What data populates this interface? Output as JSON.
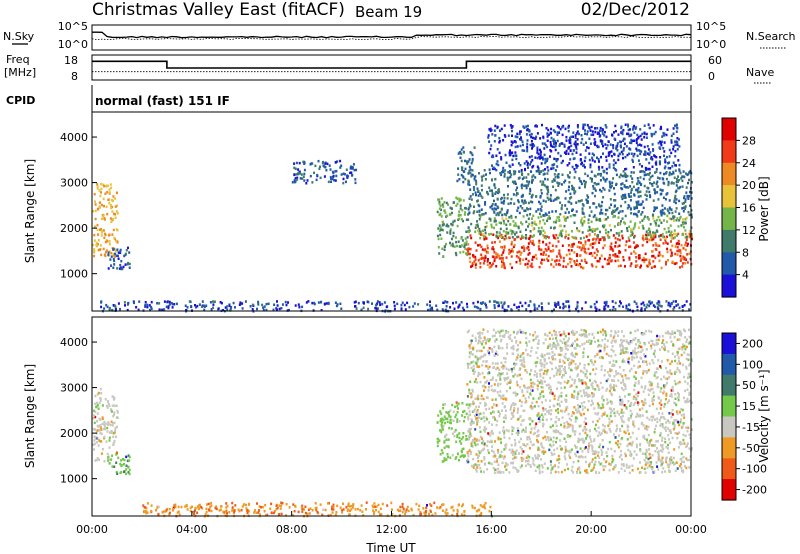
{
  "header": {
    "station": "Christmas Valley East (fitACF)",
    "beam": "Beam 19",
    "date": "02/Dec/2012"
  },
  "left_labels": {
    "nsky": "N.Sky",
    "freq_top": "Freq",
    "freq_unit": "[MHz]",
    "cpid": "CPID"
  },
  "right_labels": {
    "nsearch": "N.Search",
    "nave": "Nave"
  },
  "cpid_value": "normal (fast) 151 IF",
  "chart_data": [
    {
      "type": "line",
      "name": "noise",
      "series": [
        {
          "name": "N.Sky"
        },
        {
          "name": "N.Search"
        }
      ],
      "ytick_labels_left": [
        "10^5",
        "10^0"
      ],
      "ytick_labels_right": [
        "10^5",
        "10^0"
      ]
    },
    {
      "type": "line",
      "name": "frequency-nave",
      "series": [
        {
          "name": "Freq",
          "points": [
            [
              0,
              15.5
            ],
            [
              3.0,
              15.5
            ],
            [
              3.0,
              12.8
            ],
            [
              15.0,
              12.8
            ],
            [
              15.0,
              15.5
            ],
            [
              24,
              15.5
            ]
          ]
        },
        {
          "name": "Nave",
          "points": [
            [
              0,
              20
            ],
            [
              24,
              20
            ]
          ]
        }
      ],
      "ytick_labels_left": [
        "18",
        "8"
      ],
      "ytick_labels_right": [
        "60",
        "0"
      ],
      "ylim_left": [
        8,
        18
      ],
      "ylim_right": [
        0,
        60
      ]
    },
    {
      "type": "heatmap",
      "name": "power",
      "xlabel": "",
      "ylabel": "Slant Range [km]",
      "xlim": [
        0,
        24
      ],
      "ylim": [
        180,
        4550
      ],
      "yticks": [
        1000,
        2000,
        3000,
        4000
      ],
      "colorbar_label": "Power [dB]",
      "colorbar_ticks": [
        "4",
        "8",
        "12",
        "16",
        "20",
        "24",
        "28"
      ],
      "colorbar_range": [
        0,
        32
      ],
      "colors": [
        "#1a10d8",
        "#205aa8",
        "#3f7a6a",
        "#74b54a",
        "#e8c33a",
        "#ee8a24",
        "#f03a18",
        "#e00000"
      ],
      "regions": [
        {
          "t": [
            0.0,
            1.0
          ],
          "r": [
            1400,
            3000
          ],
          "value": 20
        },
        {
          "t": [
            0.6,
            1.5
          ],
          "r": [
            1100,
            1600
          ],
          "value": 6
        },
        {
          "t": [
            8.0,
            10.6
          ],
          "r": [
            3000,
            3500
          ],
          "value": 6
        },
        {
          "t": [
            13.8,
            15.0
          ],
          "r": [
            1400,
            2700
          ],
          "value": 12
        },
        {
          "t": [
            14.6,
            15.3
          ],
          "r": [
            3000,
            3800
          ],
          "value": 8
        },
        {
          "t": [
            15.0,
            24.0
          ],
          "r": [
            1150,
            1900
          ],
          "value": 26
        },
        {
          "t": [
            15.0,
            24.0
          ],
          "r": [
            1800,
            2300
          ],
          "value": 13
        },
        {
          "t": [
            15.0,
            24.0
          ],
          "r": [
            2300,
            3300
          ],
          "value": 8
        },
        {
          "t": [
            15.8,
            23.5
          ],
          "r": [
            3300,
            4300
          ],
          "value": 4
        },
        {
          "t": [
            0.3,
            24.0
          ],
          "r": [
            200,
            420
          ],
          "value": 5
        }
      ]
    },
    {
      "type": "heatmap",
      "name": "velocity",
      "xlabel": "Time UT",
      "ylabel": "Slant Range [km]",
      "xlim": [
        0,
        24
      ],
      "ylim": [
        180,
        4550
      ],
      "yticks": [
        1000,
        2000,
        3000,
        4000
      ],
      "xtick_labels": [
        "00:00",
        "04:00",
        "08:00",
        "12:00",
        "16:00",
        "20:00",
        "00:00"
      ],
      "colorbar_label": "Velocity [m s⁻¹]",
      "colorbar_ticks": [
        "200",
        "100",
        "50",
        "15",
        "-15",
        "-50",
        "-100",
        "-200"
      ],
      "colors": [
        "#1a10d8",
        "#205aa8",
        "#3f7a6a",
        "#74c84a",
        "#c8c8c0",
        "#ee9a24",
        "#f05a18",
        "#e00000"
      ],
      "regions": [
        {
          "t": [
            0.0,
            1.0
          ],
          "r": [
            1400,
            3000
          ],
          "velocity": 0
        },
        {
          "t": [
            0.6,
            1.5
          ],
          "r": [
            1100,
            1600
          ],
          "velocity": 40
        },
        {
          "t": [
            13.8,
            15.0
          ],
          "r": [
            1400,
            2700
          ],
          "velocity": 30
        },
        {
          "t": [
            15.0,
            24.0
          ],
          "r": [
            1150,
            2300
          ],
          "velocity": 0
        },
        {
          "t": [
            15.0,
            24.0
          ],
          "r": [
            2300,
            4300
          ],
          "velocity": 0
        },
        {
          "t": [
            2.0,
            16.0
          ],
          "r": [
            200,
            500
          ],
          "velocity": -40
        }
      ]
    }
  ]
}
